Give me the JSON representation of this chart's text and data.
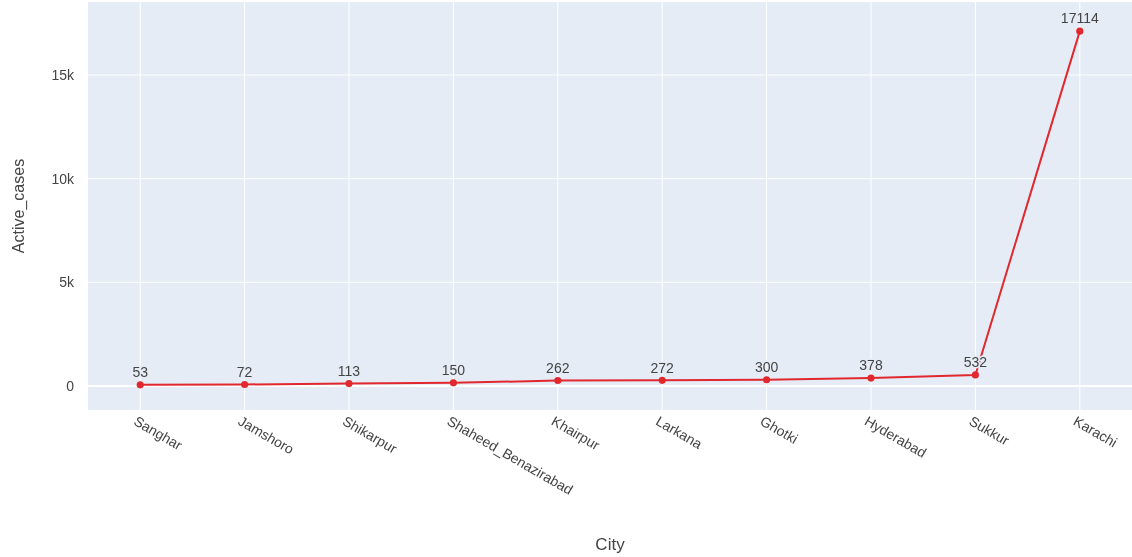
{
  "chart_data": {
    "type": "line",
    "xlabel": "City",
    "ylabel": "Active_cases",
    "categories": [
      "Sanghar",
      "Jamshoro",
      "Shikarpur",
      "Shaheed_Benazirabad",
      "Khairpur",
      "Larkana",
      "Ghotki",
      "Hyderabad",
      "Sukkur",
      "Karachi"
    ],
    "series": [
      {
        "color": "#e0282e",
        "values": [
          53,
          72,
          113,
          150,
          262,
          272,
          300,
          378,
          532,
          17114
        ]
      }
    ],
    "ylim": [
      -1160,
      18520
    ],
    "yticks": [
      0,
      {
        "value": 5000,
        "label": "5k"
      },
      {
        "value": 10000,
        "label": "10k"
      },
      {
        "value": 15000,
        "label": "15k"
      }
    ],
    "grid": true,
    "marker": "circle",
    "data_labels": true
  }
}
